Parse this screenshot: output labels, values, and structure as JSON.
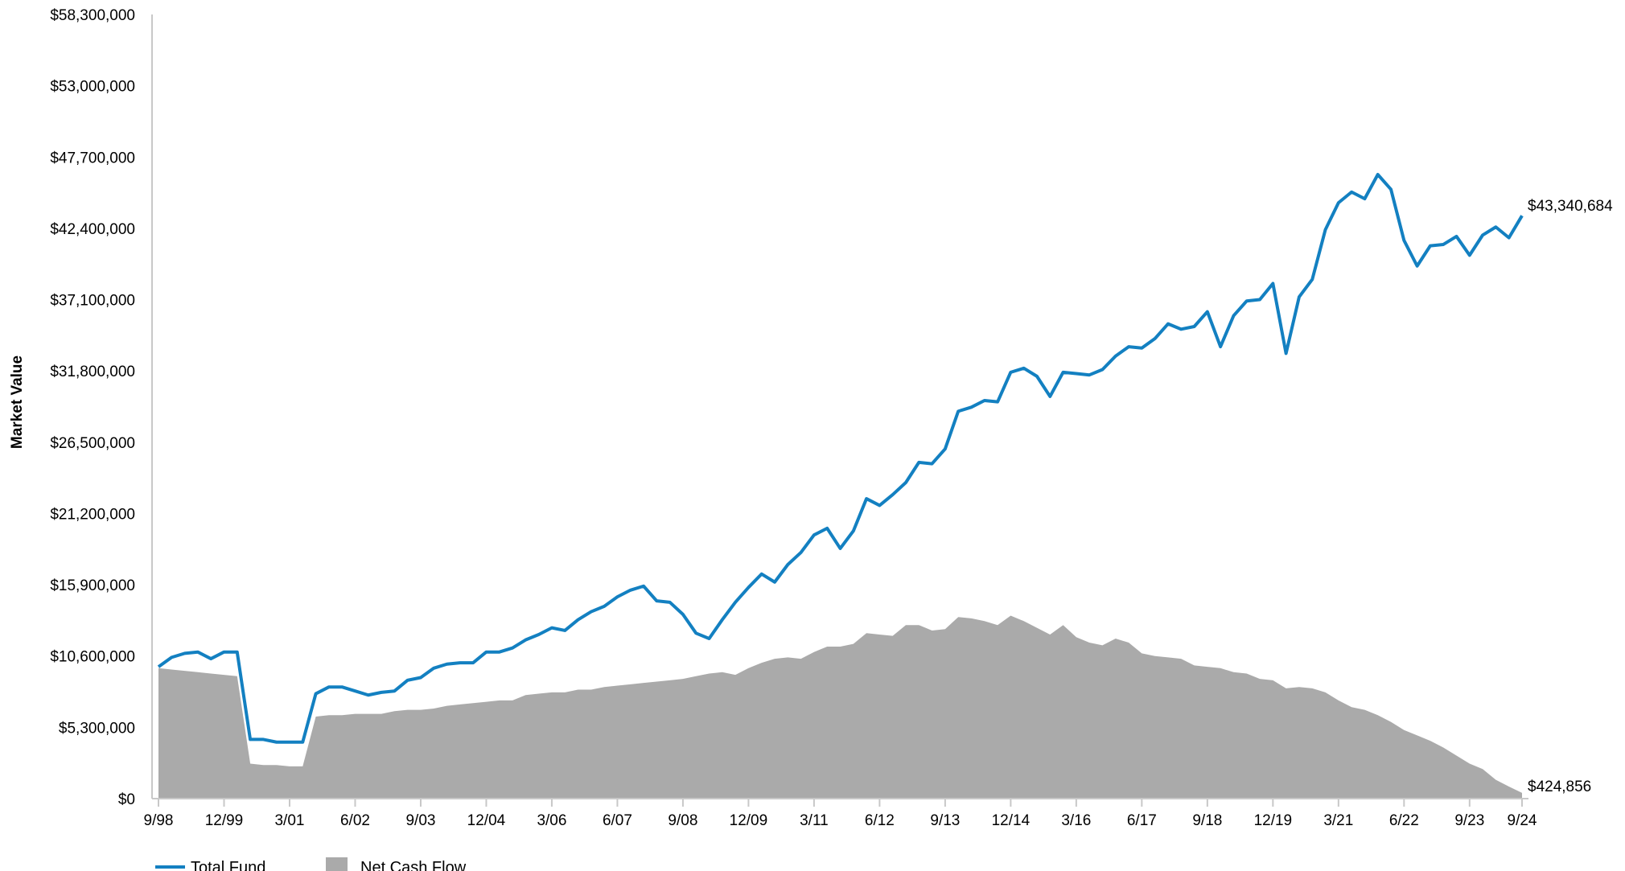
{
  "chart_data": {
    "type": "line",
    "ylabel": "Market Value",
    "xlabel": "",
    "ylim": [
      0,
      58300000
    ],
    "grid": false,
    "legend_placement": "bottom-left",
    "yticks": [
      0,
      5300000,
      10600000,
      15900000,
      21200000,
      26500000,
      31800000,
      37100000,
      42400000,
      47700000,
      53000000,
      58300000
    ],
    "ytick_labels": [
      "$0",
      "$5,300,000",
      "$10,600,000",
      "$15,900,000",
      "$21,200,000",
      "$26,500,000",
      "$31,800,000",
      "$37,100,000",
      "$42,400,000",
      "$47,700,000",
      "$53,000,000",
      "$58,300,000"
    ],
    "xtick_labels": [
      "9/98",
      "12/99",
      "3/01",
      "6/02",
      "9/03",
      "12/04",
      "3/06",
      "6/07",
      "9/08",
      "12/09",
      "3/11",
      "6/12",
      "9/13",
      "12/14",
      "3/16",
      "6/17",
      "9/18",
      "12/19",
      "3/21",
      "6/22",
      "9/23",
      "9/24"
    ],
    "xtick_positions": [
      0,
      5,
      10,
      15,
      20,
      25,
      30,
      35,
      40,
      45,
      50,
      55,
      60,
      65,
      70,
      75,
      80,
      85,
      90,
      95,
      100,
      104
    ],
    "colors": {
      "total_fund": "#1380c1",
      "net_cash_flow": "#aaaaaa"
    },
    "series": [
      {
        "name": "Total Fund",
        "kind": "line",
        "values": [
          9800000,
          10500000,
          10800000,
          10900000,
          10400000,
          10900000,
          10900000,
          4400000,
          4400000,
          4200000,
          4200000,
          4200000,
          7800000,
          8300000,
          8300000,
          8000000,
          7700000,
          7900000,
          8000000,
          8800000,
          9000000,
          9700000,
          10000000,
          10100000,
          10100000,
          10900000,
          10900000,
          11200000,
          11800000,
          12200000,
          12700000,
          12500000,
          13300000,
          13900000,
          14300000,
          15000000,
          15500000,
          15800000,
          14700000,
          14600000,
          13700000,
          12300000,
          11900000,
          13300000,
          14600000,
          15700000,
          16700000,
          16100000,
          17400000,
          18300000,
          19600000,
          20100000,
          18600000,
          19900000,
          22300000,
          21800000,
          22600000,
          23500000,
          25000000,
          24900000,
          26000000,
          28800000,
          29100000,
          29600000,
          29500000,
          31700000,
          32000000,
          31400000,
          29900000,
          31700000,
          31600000,
          31500000,
          31900000,
          32900000,
          33600000,
          33500000,
          34200000,
          35300000,
          34900000,
          35100000,
          36200000,
          33600000,
          35900000,
          37000000,
          37100000,
          38300000,
          33100000,
          37300000,
          38600000,
          42300000,
          44300000,
          45100000,
          44600000,
          46400000,
          45300000,
          41500000,
          39600000,
          41100000,
          41200000,
          41800000,
          40400000,
          41900000,
          42500000,
          41700000,
          43340684
        ]
      },
      {
        "name": "Net Cash Flow",
        "kind": "area",
        "values": [
          9700000,
          9600000,
          9500000,
          9400000,
          9300000,
          9200000,
          9100000,
          2600000,
          2500000,
          2500000,
          2400000,
          2400000,
          6100000,
          6200000,
          6200000,
          6300000,
          6300000,
          6300000,
          6500000,
          6600000,
          6600000,
          6700000,
          6900000,
          7000000,
          7100000,
          7200000,
          7300000,
          7300000,
          7700000,
          7800000,
          7900000,
          7900000,
          8100000,
          8100000,
          8300000,
          8400000,
          8500000,
          8600000,
          8700000,
          8800000,
          8900000,
          9100000,
          9300000,
          9400000,
          9200000,
          9700000,
          10100000,
          10400000,
          10500000,
          10400000,
          10900000,
          11300000,
          11300000,
          11500000,
          12300000,
          12200000,
          12100000,
          12900000,
          12900000,
          12500000,
          12600000,
          13500000,
          13400000,
          13200000,
          12900000,
          13600000,
          13200000,
          12700000,
          12200000,
          12900000,
          12000000,
          11600000,
          11400000,
          11900000,
          11600000,
          10800000,
          10600000,
          10500000,
          10400000,
          9900000,
          9800000,
          9700000,
          9400000,
          9300000,
          8900000,
          8800000,
          8200000,
          8300000,
          8200000,
          7900000,
          7300000,
          6800000,
          6600000,
          6200000,
          5700000,
          5100000,
          4700000,
          4300000,
          3800000,
          3200000,
          2600000,
          2200000,
          1400000,
          900000,
          424856
        ]
      }
    ],
    "end_labels": [
      "$43,340,684",
      "$424,856"
    ],
    "legend": [
      "Total Fund",
      "Net Cash Flow"
    ]
  }
}
